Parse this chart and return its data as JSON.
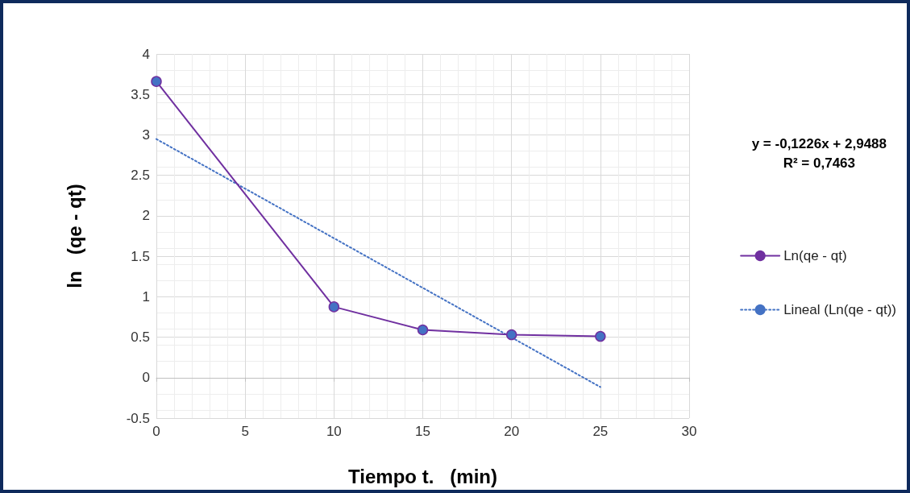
{
  "chart_data": {
    "type": "line",
    "xlabel": "Tiempo t.   (min)",
    "ylabel": "ln   (qe - qt)",
    "xlim": [
      0,
      30
    ],
    "xticks": [
      0,
      5,
      10,
      15,
      20,
      25,
      30
    ],
    "ylim": [
      -0.5,
      4
    ],
    "yticks": [
      -0.5,
      0,
      0.5,
      1,
      1.5,
      2,
      2.5,
      3,
      3.5,
      4
    ],
    "grid": true,
    "legend": "right",
    "marker": "circle",
    "annotations": [
      "y = -0,1226x + 2,9488\nR² = 0,7463"
    ],
    "series": [
      {
        "name": "Ln(qe - qt)",
        "color": "#7030a0",
        "colors": [
          "#4472c4",
          "#4472c4",
          "#4472c4",
          "#4472c4",
          "#4472c4"
        ],
        "x": [
          0,
          10,
          15,
          20,
          25
        ],
        "values": [
          3.66,
          0.875,
          0.59,
          0.53,
          0.51
        ]
      },
      {
        "name": "Lineal (Ln(qe - qt))",
        "color": "#4472c4",
        "line_style": "dotted",
        "marker": "none",
        "x": [
          0,
          25
        ],
        "values": [
          2.9488,
          -0.1162
        ]
      }
    ]
  }
}
